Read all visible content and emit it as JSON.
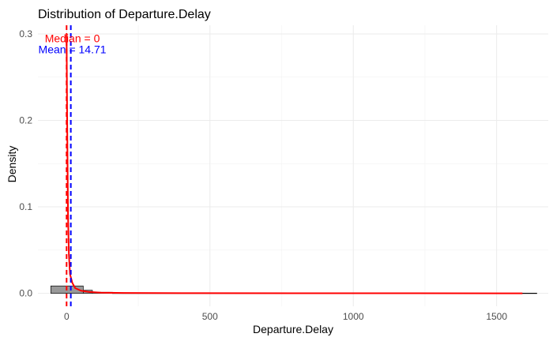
{
  "chart_data": {
    "type": "histogram",
    "title": "Distribution of Departure.Delay",
    "xlabel": "Departure.Delay",
    "ylabel": "Density",
    "xlim": [
      -100,
      1680
    ],
    "ylim": [
      -0.015,
      0.31
    ],
    "x_ticks": [
      0,
      500,
      1000,
      1500
    ],
    "x_tick_labels": [
      "0",
      "500",
      "1000",
      "1500"
    ],
    "y_ticks": [
      0.0,
      0.1,
      0.2,
      0.3
    ],
    "y_tick_labels": [
      "0.0",
      "0.1",
      "0.2",
      "0.3"
    ],
    "grid": true,
    "bins": [
      {
        "x0": -55,
        "x1": 58,
        "density": 0.0085
      },
      {
        "x0": 58,
        "x1": 90,
        "density": 0.0035
      },
      {
        "x0": 90,
        "x1": 160,
        "density": 0.0012
      },
      {
        "x0": 160,
        "x1": 1640,
        "density": 0.0002
      }
    ],
    "bar_fill": "#999999",
    "bar_stroke": "#000000",
    "density_curve": {
      "color": "#ff0000",
      "x": [
        0,
        2,
        5,
        8,
        12,
        20,
        30,
        50,
        80,
        120,
        200,
        400,
        800,
        1200,
        1590
      ],
      "y": [
        0.297,
        0.2,
        0.09,
        0.045,
        0.022,
        0.012,
        0.006,
        0.003,
        0.0015,
        0.0008,
        0.0004,
        0.00015,
        5e-05,
        2e-05,
        0.0
      ]
    },
    "reference_lines": [
      {
        "name": "median",
        "value": 0,
        "color": "#ff0000",
        "style": "dashed"
      },
      {
        "name": "mean",
        "value": 14.71,
        "color": "#0000ff",
        "style": "dashed"
      }
    ],
    "annotations": [
      {
        "text": "Median = 0",
        "x": 20,
        "y": 0.295,
        "color": "#ff0000"
      },
      {
        "text": "Mean = 14.71",
        "x": 20,
        "y": 0.282,
        "color": "#0000ff"
      }
    ]
  }
}
